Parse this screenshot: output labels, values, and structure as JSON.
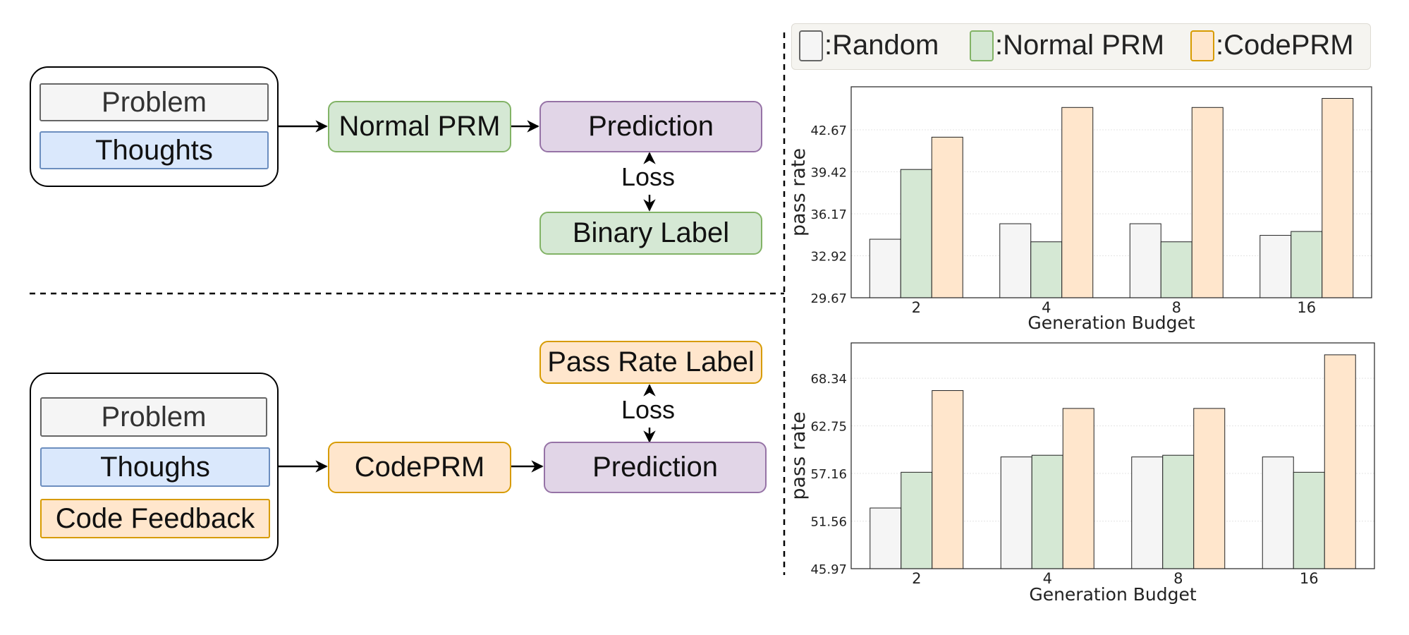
{
  "diagram": {
    "top": {
      "problem": "Problem",
      "thoughts": "Thoughts",
      "model": "Normal PRM",
      "prediction": "Prediction",
      "loss": "Loss",
      "label": "Binary Label"
    },
    "bottom": {
      "problem": "Problem",
      "thoughts": "Thoughs",
      "feedback": "Code Feedback",
      "model": "CodePRM",
      "prediction": "Prediction",
      "loss": "Loss",
      "label": "Pass Rate Label"
    }
  },
  "legend": [
    {
      "label": ":Random",
      "fill": "#f5f5f5",
      "stroke": "#666666"
    },
    {
      "label": ":Normal PRM",
      "fill": "#d5e8d4",
      "stroke": "#82b366"
    },
    {
      "label": ":CodePRM",
      "fill": "#ffe6cc",
      "stroke": "#d79b00"
    }
  ],
  "chart_data": [
    {
      "type": "bar",
      "categories": [
        "2",
        "4",
        "8",
        "16"
      ],
      "series": [
        {
          "name": "Random",
          "values": [
            34.2,
            35.4,
            35.4,
            34.5
          ]
        },
        {
          "name": "Normal PRM",
          "values": [
            39.6,
            34.0,
            34.0,
            34.8
          ]
        },
        {
          "name": "CodePRM",
          "values": [
            42.1,
            44.4,
            44.4,
            45.1
          ]
        }
      ],
      "yticks": [
        "29.67",
        "32.92",
        "36.17",
        "39.42",
        "42.67"
      ],
      "ylim": [
        29.67,
        46.0
      ],
      "xlabel": "Generation Budget",
      "ylabel": "pass rate",
      "grid": true
    },
    {
      "type": "bar",
      "categories": [
        "2",
        "4",
        "8",
        "16"
      ],
      "series": [
        {
          "name": "Random",
          "values": [
            53.1,
            59.1,
            59.1,
            59.1
          ]
        },
        {
          "name": "Normal PRM",
          "values": [
            57.3,
            59.3,
            59.3,
            57.3
          ]
        },
        {
          "name": "CodePRM",
          "values": [
            66.9,
            64.8,
            64.8,
            71.1
          ]
        }
      ],
      "yticks": [
        "45.97",
        "51.56",
        "57.16",
        "62.75",
        "68.34"
      ],
      "ylim": [
        45.97,
        72.5
      ],
      "xlabel": "Generation Budget",
      "ylabel": "pass rate",
      "grid": true
    }
  ]
}
